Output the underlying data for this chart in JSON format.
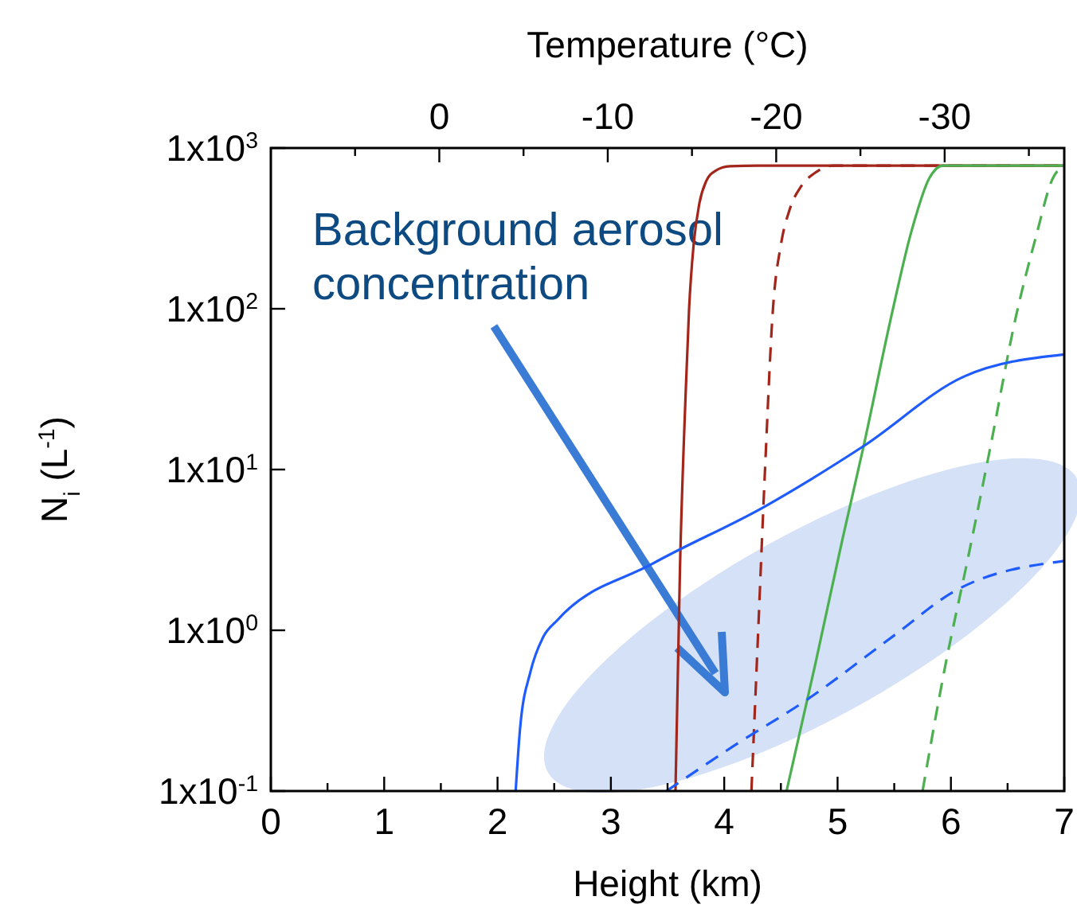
{
  "chart_data": {
    "type": "line",
    "xlabel": "Height (km)",
    "ylabel": "N$_{i}$ (L$^{-1}$)",
    "x2label": "Temperature (°C)",
    "log": "y",
    "xlim": [
      0,
      7
    ],
    "xticks": [
      0,
      {
        "value": 0.5,
        "label": null
      },
      1,
      {
        "value": 1.5,
        "label": null
      },
      2,
      {
        "value": 2.5,
        "label": null
      },
      3,
      {
        "value": 3.5,
        "label": null
      },
      4,
      {
        "value": 4.5,
        "label": null
      },
      5,
      {
        "value": 5.5,
        "label": null
      },
      6,
      {
        "value": 6.5,
        "label": null
      },
      7
    ],
    "x2lim": [
      10,
      -37.1
    ],
    "x2ticks": [
      {
        "value": 5,
        "label": null
      },
      0,
      {
        "value": -5,
        "label": null
      },
      -10,
      {
        "value": -15,
        "label": null
      },
      -20,
      {
        "value": -25,
        "label": null
      },
      -30,
      {
        "value": -35,
        "label": null
      }
    ],
    "ylim": [
      0.1,
      1000
    ],
    "yticks": [
      {
        "value": 0.1,
        "label": "1x10$^{-1}$"
      },
      {
        "value": 1,
        "label": "1x10$^{0}$"
      },
      {
        "value": 10,
        "label": "1x10$^{1}$"
      },
      {
        "value": 100,
        "label": "1x10$^{2}$"
      },
      {
        "value": 1000,
        "label": "1x10$^{3}$"
      }
    ],
    "annotations": [
      "Background aerosol concentration"
    ],
    "series": [
      {
        "color": "#a3261b",
        "line_style": "solid",
        "x": [
          3.57,
          3.61,
          3.66,
          3.69,
          3.73,
          3.78,
          3.84,
          3.92,
          4.05,
          4.3,
          7
        ],
        "values": [
          0.1,
          2.5,
          30,
          100,
          250,
          450,
          620,
          720,
          770,
          777,
          777
        ]
      },
      {
        "color": "#a3261b",
        "line_style": "dashed",
        "x": [
          4.24,
          4.3,
          4.36,
          4.43,
          4.5,
          4.58,
          4.68,
          4.8,
          4.96,
          7
        ],
        "values": [
          0.1,
          1,
          10,
          100,
          250,
          420,
          580,
          700,
          777,
          777
        ]
      },
      {
        "color": "#4cb050",
        "line_style": "solid",
        "x": [
          4.55,
          4.8,
          5.04,
          5.23,
          5.47,
          5.65,
          5.81,
          5.93,
          7
        ],
        "values": [
          0.1,
          0.6,
          3.6,
          14,
          87,
          300,
          650,
          777,
          777
        ]
      },
      {
        "color": "#4cb050",
        "line_style": "dashed",
        "x": [
          5.75,
          5.95,
          6.15,
          6.35,
          6.57,
          6.75,
          6.9,
          7
        ],
        "values": [
          0.1,
          0.6,
          2.8,
          14,
          87,
          280,
          650,
          777
        ]
      },
      {
        "color": "#1f5cff",
        "line_style": "solid",
        "x": [
          2.16,
          2.2,
          2.29,
          2.4,
          2.53,
          3.37,
          4.36,
          5.23,
          6.12,
          7
        ],
        "values": [
          0.1,
          0.25,
          0.55,
          0.9,
          1.16,
          2.6,
          5.9,
          14,
          38,
          52
        ]
      },
      {
        "color": "#1f5cff",
        "line_style": "dashed",
        "x": [
          3.49,
          4.08,
          4.73,
          5.5,
          6.05,
          7
        ],
        "values": [
          0.1,
          0.19,
          0.37,
          0.93,
          1.78,
          2.7
        ]
      }
    ]
  }
}
